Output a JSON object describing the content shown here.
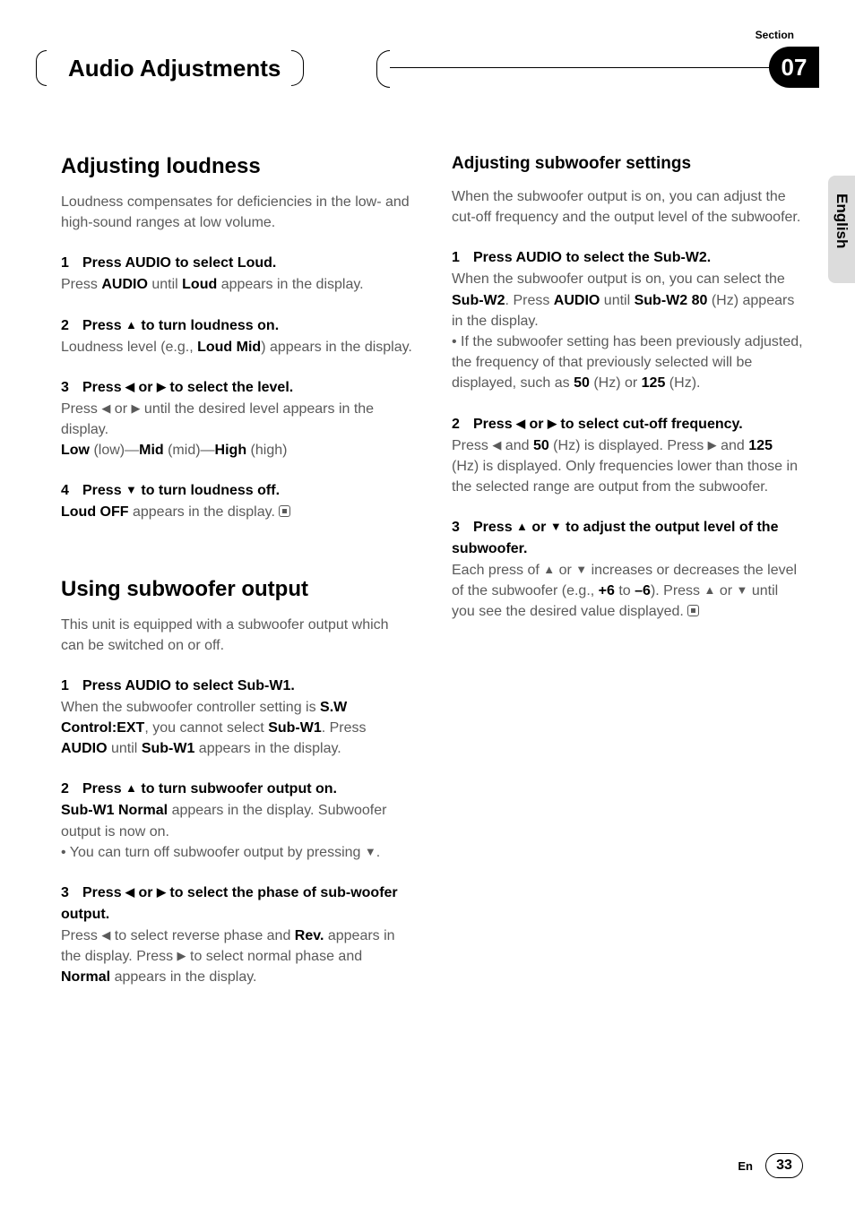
{
  "header": {
    "section_label": "Section",
    "title": "Audio Adjustments",
    "section_number": "07"
  },
  "lang_tab": "English",
  "left": {
    "loudness": {
      "heading": "Adjusting loudness",
      "intro": "Loudness compensates for deficiencies in the low- and high-sound ranges at low volume.",
      "step1": {
        "num": "1",
        "head_a": "Press AUDIO to select ",
        "head_b": "Loud.",
        "body_a": "Press ",
        "body_b": "AUDIO",
        "body_c": " until ",
        "body_d": "Loud",
        "body_e": " appears in the display."
      },
      "step2": {
        "num": "2",
        "head_a": "Press ",
        "head_b": " to turn loudness on.",
        "body_a": "Loudness level (e.g., ",
        "body_b": "Loud Mid",
        "body_c": ") appears in the display."
      },
      "step3": {
        "num": "3",
        "head_a": "Press ",
        "head_b": " or ",
        "head_c": " to select the level.",
        "body_a": "Press ",
        "body_b": " or ",
        "body_c": " until the desired level appears in the display.",
        "body_d": "Low",
        "body_e": " (low)—",
        "body_f": "Mid",
        "body_g": " (mid)—",
        "body_h": "High",
        "body_i": " (high)"
      },
      "step4": {
        "num": "4",
        "head_a": "Press ",
        "head_b": " to turn loudness off.",
        "body_a": "Loud OFF",
        "body_b": " appears in the display. "
      }
    },
    "subout": {
      "heading": "Using subwoofer output",
      "intro": "This unit is equipped with a subwoofer output which can be switched on or off.",
      "step1": {
        "num": "1",
        "head_a": "Press AUDIO to select ",
        "head_b": "Sub-W1.",
        "body_a": "When the subwoofer controller setting is ",
        "body_b": "S.W Control:EXT",
        "body_c": ", you cannot select ",
        "body_d": "Sub-W1",
        "body_e": ". Press ",
        "body_f": "AUDIO",
        "body_g": " until ",
        "body_h": "Sub-W1",
        "body_i": " appears in the display."
      },
      "step2": {
        "num": "2",
        "head_a": "Press ",
        "head_b": " to turn subwoofer output on.",
        "body_a": "Sub-W1 Normal",
        "body_b": " appears in the display. Subwoofer output is now on.",
        "body_c": "• You can turn off subwoofer output by pressing ",
        "body_d": "."
      },
      "step3": {
        "num": "3",
        "head_a": "Press ",
        "head_b": " or ",
        "head_c": " to select the phase of sub-woofer output.",
        "body_a": "Press ",
        "body_b": " to select reverse phase and ",
        "body_c": "Rev.",
        "body_d": " appears in the display. Press ",
        "body_e": " to select normal phase and ",
        "body_f": "Normal",
        "body_g": " appears in the display."
      }
    }
  },
  "right": {
    "subset": {
      "heading": "Adjusting subwoofer settings",
      "intro": "When the subwoofer output is on, you can adjust the cut-off frequency and the output level of the subwoofer.",
      "step1": {
        "num": "1",
        "head_a": "Press AUDIO to select the ",
        "head_b": "Sub-W2.",
        "body_a": "When the subwoofer output is on, you can select the ",
        "body_b": "Sub-W2",
        "body_c": ". Press ",
        "body_d": "AUDIO",
        "body_e": " until ",
        "body_f": "Sub-W2 80",
        "body_g": " (Hz) appears in the display.",
        "body_h": "• If the subwoofer setting has been previously adjusted, the frequency of that previously selected will be displayed, such as ",
        "body_i": "50",
        "body_j": " (Hz) or ",
        "body_k": "125",
        "body_l": " (Hz)."
      },
      "step2": {
        "num": "2",
        "head_a": "Press ",
        "head_b": " or ",
        "head_c": " to select cut-off frequency.",
        "body_a": "Press ",
        "body_b": " and ",
        "body_c": "50",
        "body_d": " (Hz) is displayed. Press ",
        "body_e": " and ",
        "body_f": "125",
        "body_g": " (Hz) is displayed. Only frequencies lower than those in the selected range are output from the subwoofer."
      },
      "step3": {
        "num": "3",
        "head_a": "Press ",
        "head_b": " or ",
        "head_c": " to adjust the output level of the subwoofer.",
        "body_a": "Each press of ",
        "body_b": " or ",
        "body_c": " increases or decreases the level of the subwoofer (e.g., ",
        "body_d": "+6",
        "body_e": " to ",
        "body_f": "–6",
        "body_g": "). Press ",
        "body_h": " or ",
        "body_i": " until you see the desired value displayed. "
      }
    }
  },
  "footer": {
    "lang": "En",
    "page": "33"
  },
  "glyphs": {
    "up": "▲",
    "down": "▼",
    "left": "◀",
    "right": "▶"
  }
}
